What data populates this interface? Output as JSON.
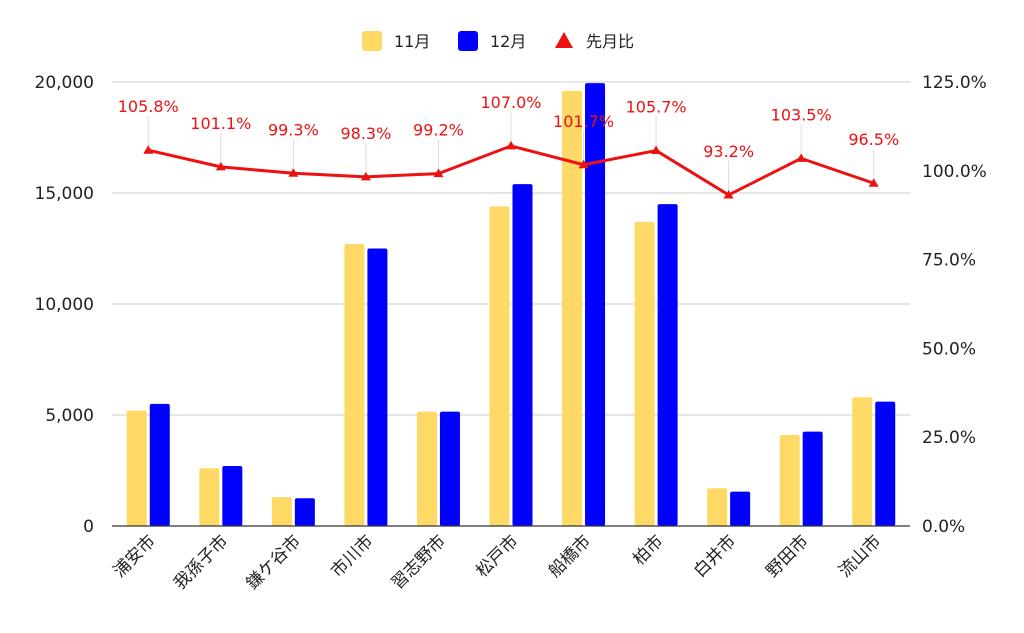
{
  "chart_data": {
    "type": "bar",
    "categories": [
      "浦安市",
      "我孫子市",
      "鎌ケ谷市",
      "市川市",
      "習志野市",
      "松戸市",
      "船橋市",
      "柏市",
      "白井市",
      "野田市",
      "流山市"
    ],
    "series": [
      {
        "name": "11月",
        "type": "bar",
        "axis": "left",
        "color": "#FFD966",
        "values": [
          5200,
          2600,
          1300,
          12700,
          5150,
          14400,
          19600,
          13700,
          1700,
          4100,
          5800
        ]
      },
      {
        "name": "12月",
        "type": "bar",
        "axis": "left",
        "color": "#0000FF",
        "values": [
          5500,
          2700,
          1250,
          12500,
          5150,
          15400,
          19950,
          14500,
          1550,
          4250,
          5600
        ]
      },
      {
        "name": "先月比",
        "type": "line",
        "axis": "right",
        "color": "#EE1111",
        "values": [
          105.8,
          101.1,
          99.3,
          98.3,
          99.2,
          107.0,
          101.7,
          105.7,
          93.2,
          103.5,
          96.5
        ],
        "labels": [
          "105.8%",
          "101.1%",
          "99.3%",
          "98.3%",
          "99.2%",
          "107.0%",
          "101.7%",
          "105.7%",
          "93.2%",
          "103.5%",
          "96.5%"
        ]
      }
    ],
    "y_left": {
      "min": 0,
      "max": 20000,
      "ticks": [
        0,
        5000,
        10000,
        15000,
        20000
      ],
      "tick_labels": [
        "0",
        "5,000",
        "10,000",
        "15,000",
        "20,000"
      ]
    },
    "y_right": {
      "min": 0,
      "max": 125,
      "ticks": [
        0,
        25,
        50,
        75,
        100,
        125
      ],
      "tick_labels": [
        "0.0%",
        "25.0%",
        "50.0%",
        "75.0%",
        "100.0%",
        "125.0%"
      ]
    },
    "legend_position": "top-center",
    "grid": true
  }
}
